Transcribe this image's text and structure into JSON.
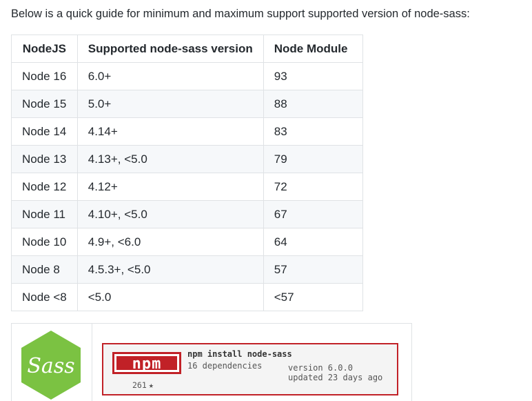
{
  "intro_text": "Below is a quick guide for minimum and maximum support supported version of node-sass:",
  "table": {
    "headers": [
      "NodeJS",
      "Supported node-sass version",
      "Node Module"
    ],
    "rows": [
      [
        "Node 16",
        "6.0+",
        "93"
      ],
      [
        "Node 15",
        "5.0+",
        "88"
      ],
      [
        "Node 14",
        "4.14+",
        "83"
      ],
      [
        "Node 13",
        "4.13+, <5.0",
        "79"
      ],
      [
        "Node 12",
        "4.12+",
        "72"
      ],
      [
        "Node 11",
        "4.10+, <5.0",
        "67"
      ],
      [
        "Node 10",
        "4.9+, <6.0",
        "64"
      ],
      [
        "Node 8",
        "4.5.3+, <5.0",
        "57"
      ],
      [
        "Node <8",
        "<5.0",
        "<57"
      ]
    ]
  },
  "sass_logo": {
    "text": "Sass",
    "color": "#7bc242"
  },
  "npm_card": {
    "logo_text": "npm",
    "command": "npm install node-sass",
    "dependencies": "16 dependencies",
    "version": "version 6.0.0",
    "updated": "updated 23 days ago",
    "stars": "261",
    "star_icon": "star-icon",
    "brand_color": "#c12127"
  }
}
